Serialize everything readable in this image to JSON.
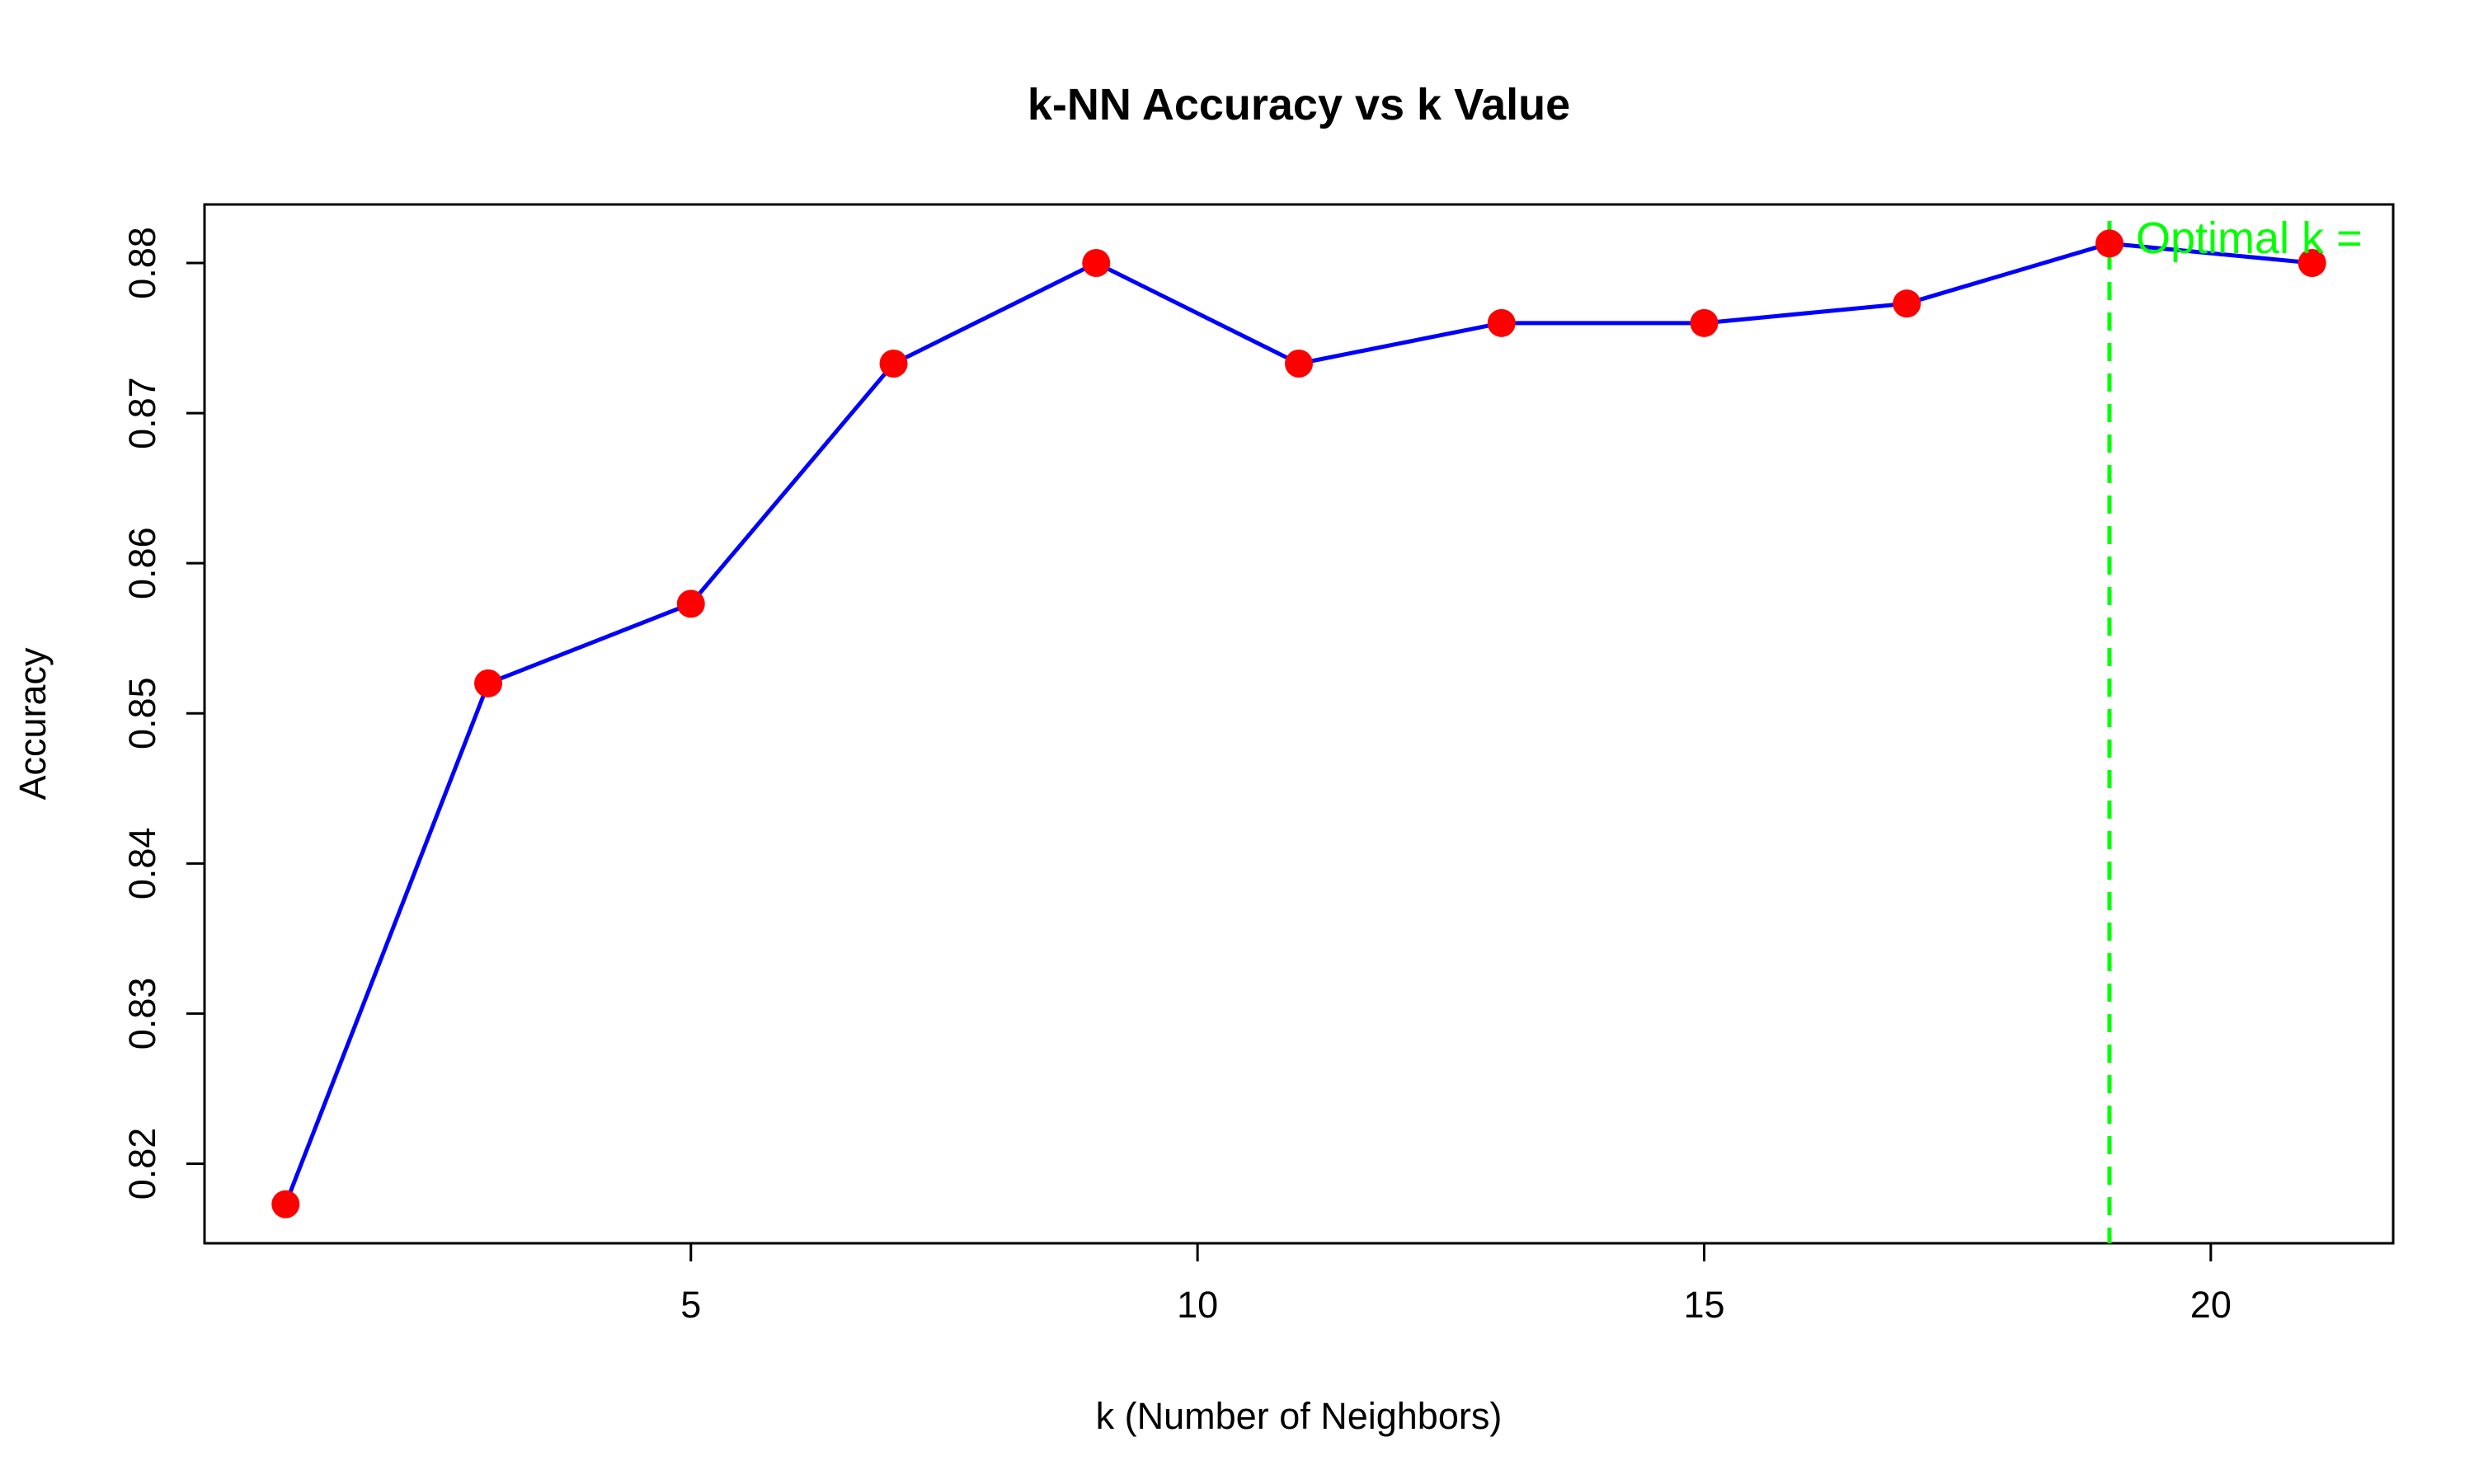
{
  "chart_data": {
    "type": "line",
    "title": "k-NN Accuracy vs k Value",
    "xlabel": "k (Number of Neighbors)",
    "ylabel": "Accuracy",
    "x": [
      1,
      3,
      5,
      7,
      9,
      11,
      13,
      15,
      17,
      19,
      21
    ],
    "series": [
      {
        "values": [
          0.8173,
          0.852,
          0.8573,
          0.8733,
          0.88,
          0.8733,
          0.876,
          0.876,
          0.8773,
          0.8813,
          0.88
        ]
      }
    ],
    "xlim": [
      0.2,
      21.8
    ],
    "ylim": [
      0.8147,
      0.8839
    ],
    "xticks": [
      5,
      10,
      15,
      20
    ],
    "xtick_labels": [
      "5",
      "10",
      "15",
      "20"
    ],
    "yticks": [
      0.82,
      0.83,
      0.84,
      0.85,
      0.86,
      0.87,
      0.88
    ],
    "ytick_labels": [
      "0.82",
      "0.83",
      "0.84",
      "0.85",
      "0.86",
      "0.87",
      "0.88"
    ],
    "optimal_k": 19,
    "annotation_text": "Optimal k =",
    "grid": false,
    "colors": {
      "line": "#0000ff",
      "points": "#ff0000",
      "vline": "#00ff00",
      "annotation": "#00ff00",
      "axis": "#000000"
    }
  }
}
